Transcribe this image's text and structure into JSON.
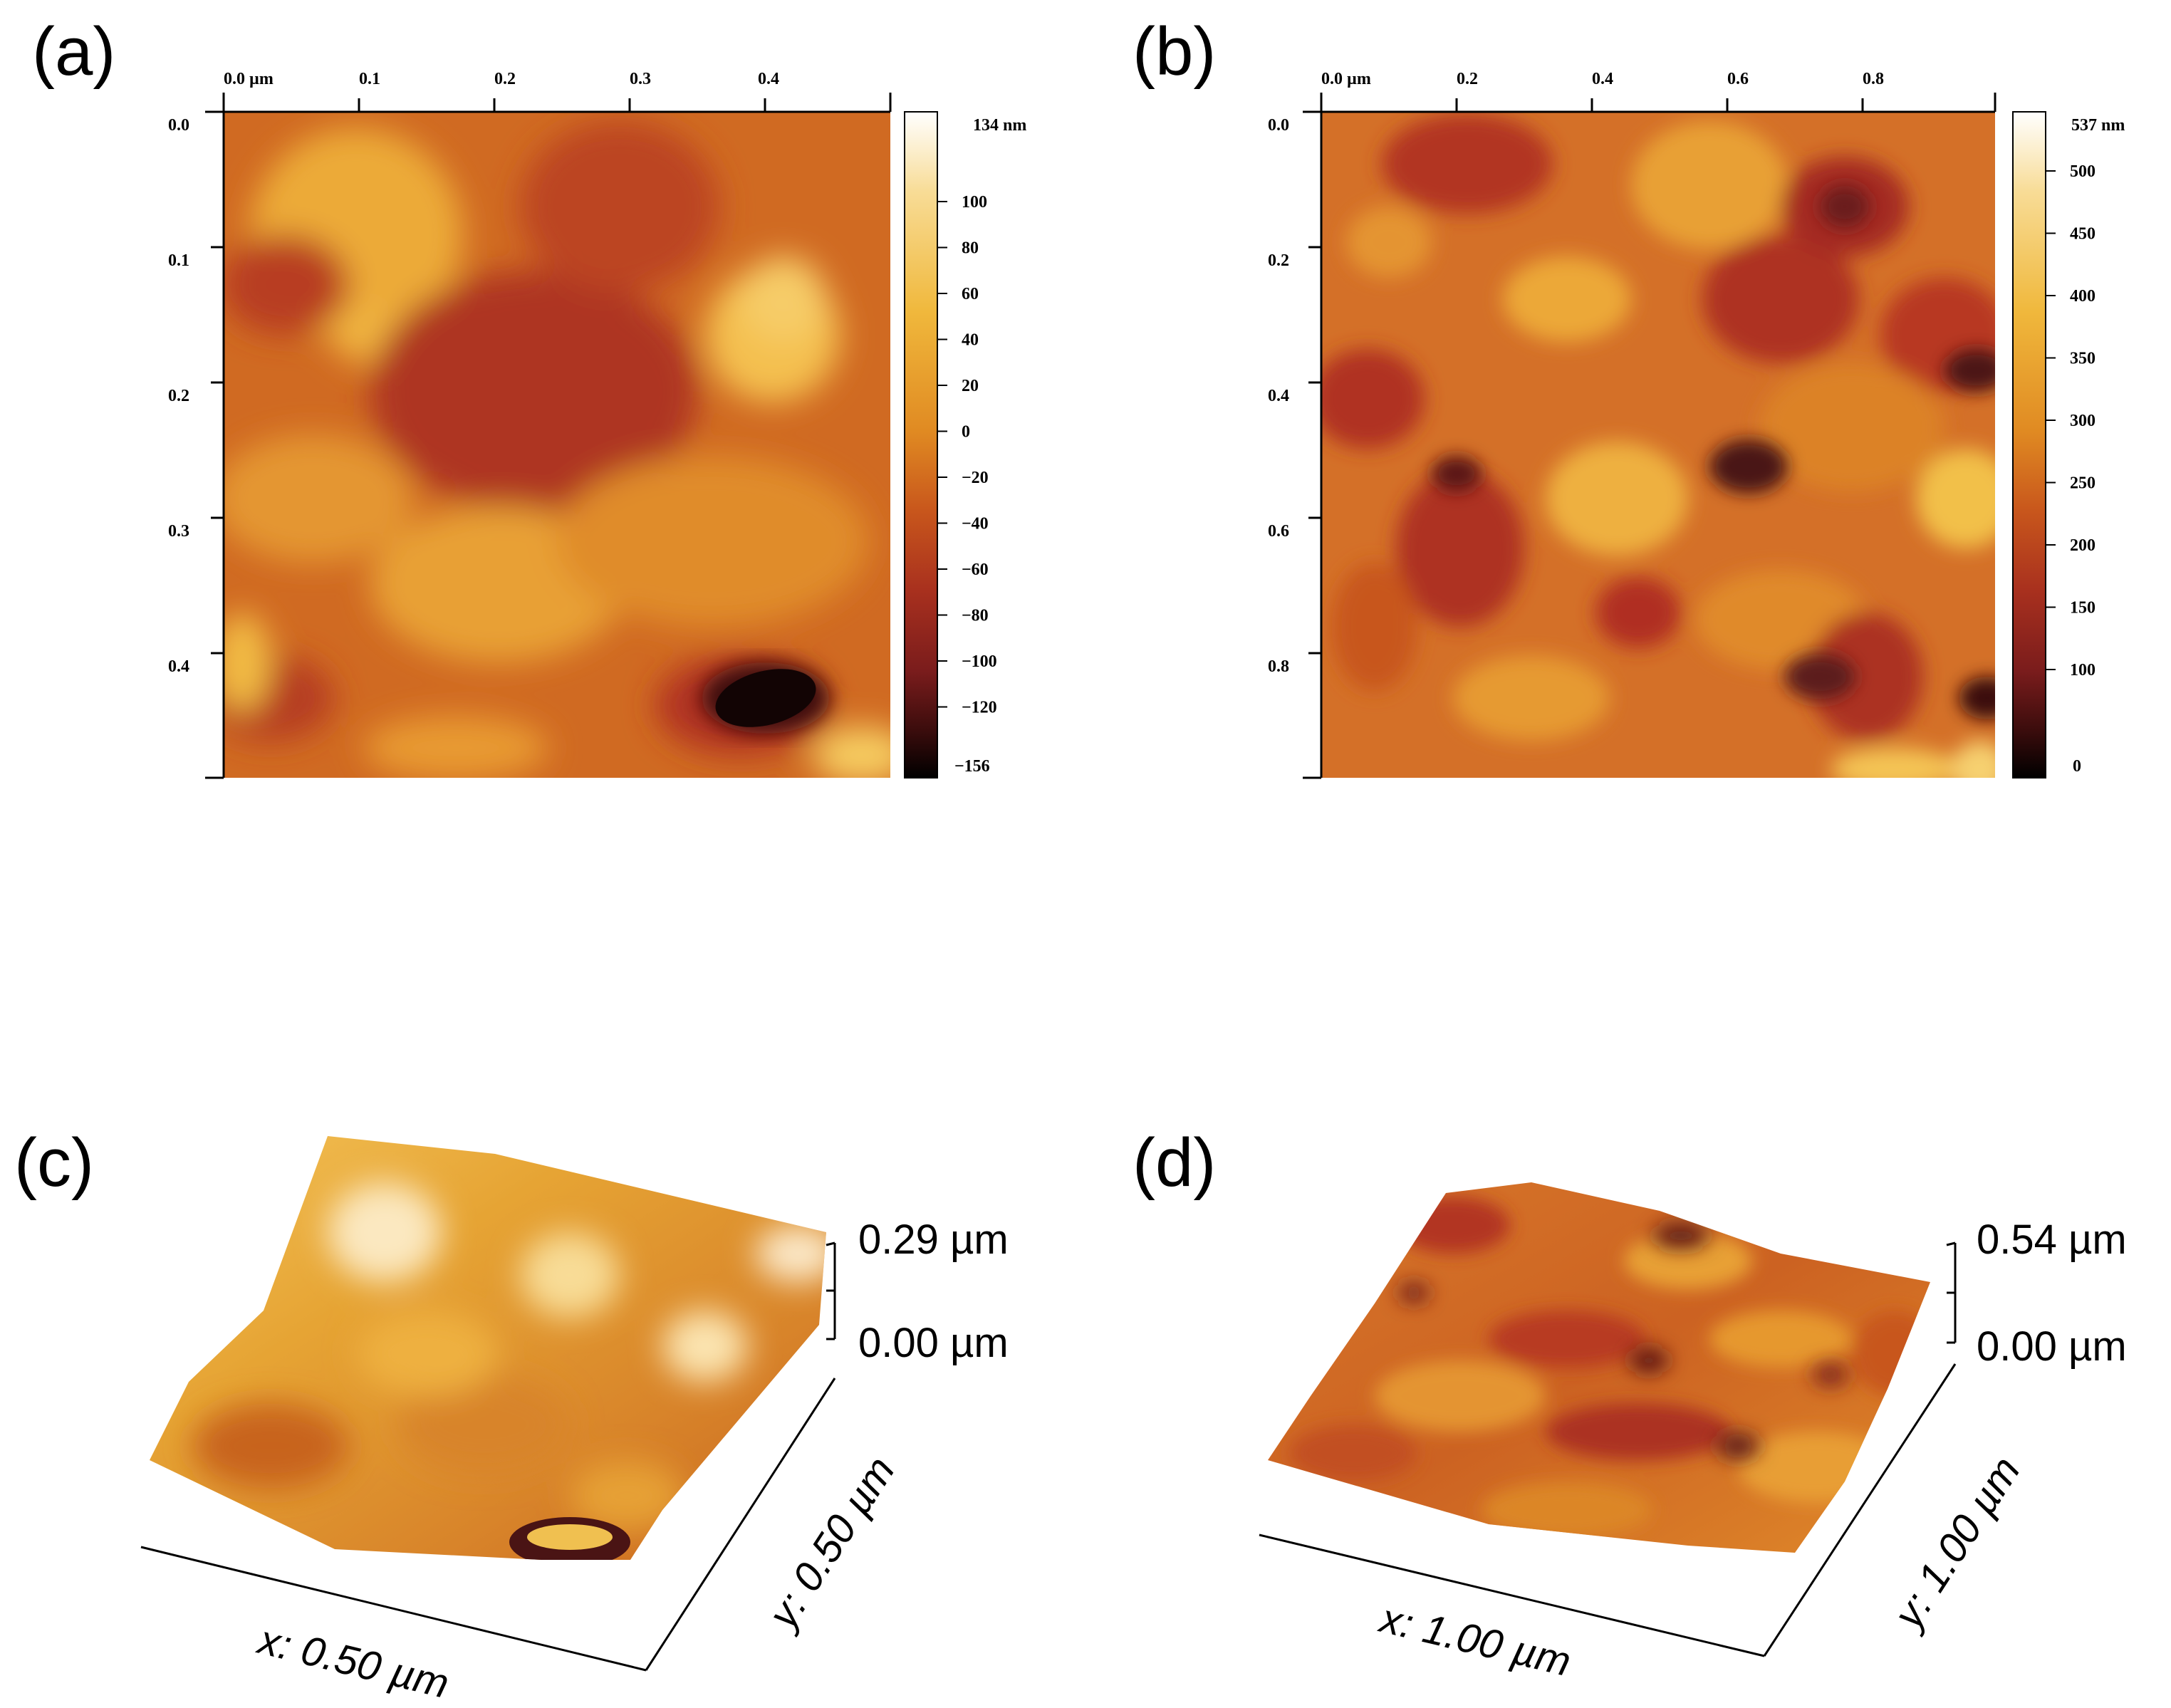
{
  "figure": {
    "colors": {
      "colormap": [
        "#000000",
        "#3a0c0c",
        "#7a1c1c",
        "#a8301e",
        "#c8561c",
        "#e08a22",
        "#f0b83c",
        "#f8dc96",
        "#ffffff"
      ],
      "axis": "#000000",
      "background": "#ffffff"
    },
    "panels": {
      "a": {
        "letter": "(a)",
        "x_ticks": [
          "0.0 µm",
          "0.1",
          "0.2",
          "0.3",
          "0.4"
        ],
        "y_ticks": [
          "0.0",
          "0.1",
          "0.2",
          "0.3",
          "0.4"
        ],
        "colorbar": {
          "max_label": "134 nm",
          "ticks": [
            "100",
            "80",
            "60",
            "40",
            "20",
            "0",
            "−20",
            "−40",
            "−60",
            "−80",
            "−100",
            "−120"
          ],
          "min_label": "−156"
        }
      },
      "b": {
        "letter": "(b)",
        "x_ticks": [
          "0.0 µm",
          "0.2",
          "0.4",
          "0.6",
          "0.8"
        ],
        "y_ticks": [
          "0.0",
          "0.2",
          "0.4",
          "0.6",
          "0.8"
        ],
        "colorbar": {
          "max_label": "537 nm",
          "ticks": [
            "500",
            "450",
            "400",
            "350",
            "300",
            "250",
            "200",
            "150",
            "100"
          ],
          "min_label": "0"
        }
      },
      "c": {
        "letter": "(c)",
        "z_max": "0.29 µm",
        "z_min": "0.00 µm",
        "x_label": "x: 0.50 µm",
        "y_label": "y: 0.50 µm"
      },
      "d": {
        "letter": "(d)",
        "z_max": "0.54 µm",
        "z_min": "0.00 µm",
        "x_label": "x: 1.00 µm",
        "y_label": "y: 1.00 µm"
      }
    }
  }
}
